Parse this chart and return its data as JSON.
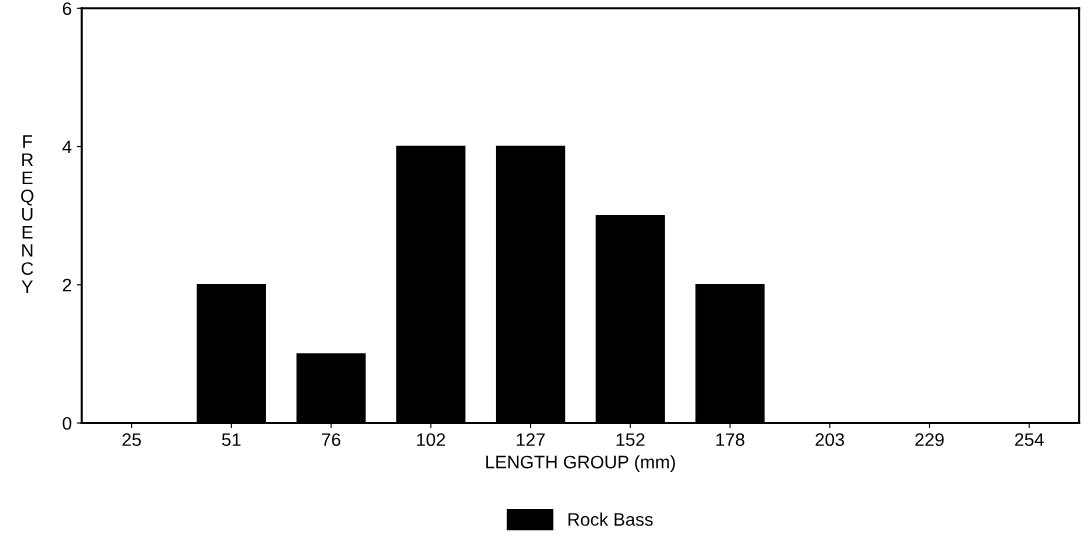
{
  "chart_data": {
    "type": "bar",
    "xlabel": "LENGTH GROUP (mm)",
    "ylabel": "FREQUENCY",
    "categories": [
      "25",
      "51",
      "76",
      "102",
      "127",
      "152",
      "178",
      "203",
      "229",
      "254"
    ],
    "series": [
      {
        "name": "Rock Bass",
        "color": "#000000",
        "values": [
          0,
          2,
          1,
          4,
          4,
          3,
          2,
          0,
          0,
          0
        ]
      }
    ],
    "ylim": [
      0,
      6
    ],
    "yticks": [
      0,
      2,
      4,
      6
    ],
    "grid": false,
    "legend": "bottom"
  }
}
